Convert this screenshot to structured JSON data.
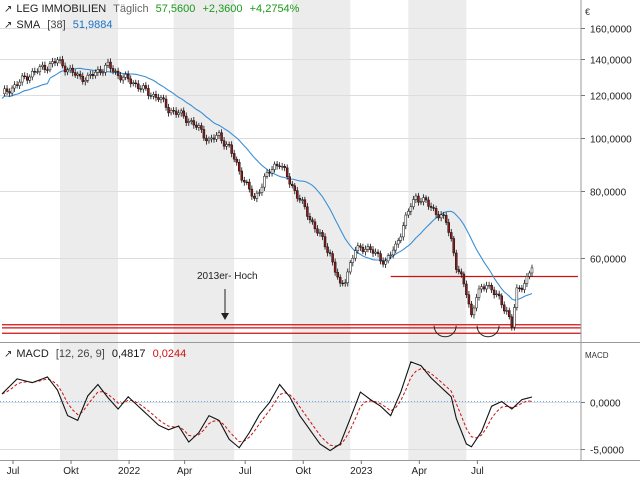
{
  "header": {
    "instrument": "LEG IMMOBILIEN",
    "interval": "Täglich",
    "last": "57,5600",
    "change": "+2,3600",
    "change_pct": "+4,2754%"
  },
  "sma_legend": {
    "name": "SMA",
    "param": "[38]",
    "value": "51,9884"
  },
  "macd_legend": {
    "name": "MACD",
    "params": "[12, 26, 9]",
    "value1": "0,4817",
    "value2": "0,0244"
  },
  "currency_label": "€",
  "macd_axis_label": "MACD",
  "annotation": {
    "text": "2013er- Hoch"
  },
  "colors": {
    "up": "#ffffff",
    "down": "#8b1a1a",
    "wick": "#111111",
    "sma": "#3b8fd6",
    "hline": "#cc1111",
    "macd": "#111111",
    "signal": "#cc1111",
    "band": "#ececec",
    "zero": "#3b8fd6",
    "change_pos": "#1a9a1a",
    "sma_value": "#1a73c8"
  },
  "chart_data": [
    {
      "type": "candlestick",
      "name": "LEG IMMOBILIEN",
      "scale": "log",
      "ylim": [
        42,
        180
      ],
      "y_ticks": [
        {
          "v": 160,
          "label": "160,0000"
        },
        {
          "v": 140,
          "label": "140,0000"
        },
        {
          "v": 120,
          "label": "120,0000"
        },
        {
          "v": 100,
          "label": "100,0000"
        },
        {
          "v": 80,
          "label": "80,0000"
        },
        {
          "v": 60,
          "label": "60,0000"
        }
      ],
      "x_ticks": [
        "Jul",
        "Okt",
        "2022",
        "Apr",
        "Jul",
        "Okt",
        "2023",
        "Apr",
        "Jul"
      ],
      "series_close_anchors": [
        [
          0,
          120
        ],
        [
          3,
          126
        ],
        [
          6,
          132
        ],
        [
          9,
          136
        ],
        [
          11,
          139
        ],
        [
          13,
          134
        ],
        [
          15,
          130
        ],
        [
          17,
          129
        ],
        [
          19,
          133
        ],
        [
          21,
          136
        ],
        [
          23,
          131
        ],
        [
          25,
          128
        ],
        [
          27,
          125
        ],
        [
          29,
          121
        ],
        [
          31,
          119
        ],
        [
          33,
          113
        ],
        [
          35,
          111
        ],
        [
          37,
          108
        ],
        [
          39,
          104
        ],
        [
          41,
          99
        ],
        [
          43,
          101
        ],
        [
          45,
          96
        ],
        [
          47,
          87
        ],
        [
          49,
          80
        ],
        [
          50,
          77
        ],
        [
          52,
          84
        ],
        [
          54,
          89
        ],
        [
          55,
          90
        ],
        [
          57,
          83
        ],
        [
          59,
          77
        ],
        [
          61,
          71
        ],
        [
          63,
          66
        ],
        [
          65,
          61
        ],
        [
          67,
          53
        ],
        [
          68,
          55
        ],
        [
          70,
          62
        ],
        [
          72,
          63
        ],
        [
          74,
          61
        ],
        [
          76,
          59
        ],
        [
          78,
          63
        ],
        [
          79,
          67
        ],
        [
          81,
          75
        ],
        [
          82,
          78
        ],
        [
          84,
          76
        ],
        [
          86,
          73
        ],
        [
          88,
          70
        ],
        [
          89,
          65
        ],
        [
          90,
          58
        ],
        [
          92,
          52
        ],
        [
          93,
          47
        ],
        [
          94,
          51
        ],
        [
          96,
          54
        ],
        [
          98,
          51
        ],
        [
          100,
          48
        ],
        [
          101,
          45
        ],
        [
          102,
          52
        ],
        [
          104,
          55
        ],
        [
          105,
          57.56
        ]
      ],
      "sma": {
        "period": 38
      },
      "hlines": [
        55.5,
        45.2,
        44.6,
        43.6
      ],
      "hline_range": [
        {
          "level": 55.5,
          "from": 77,
          "to": 105
        },
        {
          "level": 45.2,
          "from": 0,
          "to": 105
        },
        {
          "level": 44.6,
          "from": 0,
          "to": 105
        },
        {
          "level": 43.6,
          "from": 0,
          "to": 105
        }
      ],
      "annotation_arrow_at": 44.8
    },
    {
      "type": "line",
      "name": "MACD",
      "ylim": [
        -6.2,
        6.2
      ],
      "y_ticks": [
        {
          "v": 0,
          "label": "0,0000"
        },
        {
          "v": -5,
          "label": "-5,0000"
        }
      ],
      "macd_anchors": [
        [
          0,
          0.8
        ],
        [
          3,
          2.4
        ],
        [
          6,
          2.0
        ],
        [
          9,
          2.6
        ],
        [
          11,
          1.2
        ],
        [
          13,
          -1.5
        ],
        [
          15,
          -2.0
        ],
        [
          17,
          0.6
        ],
        [
          19,
          1.8
        ],
        [
          21,
          0.4
        ],
        [
          23,
          -0.8
        ],
        [
          25,
          0.5
        ],
        [
          27,
          -0.5
        ],
        [
          29,
          -1.5
        ],
        [
          31,
          -2.5
        ],
        [
          33,
          -3.0
        ],
        [
          35,
          -2.6
        ],
        [
          37,
          -4.3
        ],
        [
          39,
          -3.3
        ],
        [
          41,
          -1.5
        ],
        [
          43,
          -2.0
        ],
        [
          45,
          -4.0
        ],
        [
          47,
          -4.9
        ],
        [
          49,
          -3.3
        ],
        [
          51,
          -1.4
        ],
        [
          53,
          -0.1
        ],
        [
          55,
          1.8
        ],
        [
          57,
          0.5
        ],
        [
          59,
          -1.5
        ],
        [
          61,
          -3.0
        ],
        [
          63,
          -4.5
        ],
        [
          65,
          -5.2
        ],
        [
          67,
          -4.5
        ],
        [
          69,
          -1.8
        ],
        [
          71,
          1.0
        ],
        [
          73,
          0.2
        ],
        [
          75,
          -0.5
        ],
        [
          77,
          -1.5
        ],
        [
          79,
          1.0
        ],
        [
          81,
          4.2
        ],
        [
          83,
          3.8
        ],
        [
          85,
          2.5
        ],
        [
          87,
          1.5
        ],
        [
          89,
          0.5
        ],
        [
          90,
          -1.8
        ],
        [
          92,
          -4.5
        ],
        [
          93,
          -4.8
        ],
        [
          95,
          -3.2
        ],
        [
          97,
          -0.5
        ],
        [
          99,
          0.0
        ],
        [
          101,
          -0.8
        ],
        [
          103,
          0.2
        ],
        [
          105,
          0.48
        ]
      ],
      "signal_final": 0.0244
    }
  ]
}
